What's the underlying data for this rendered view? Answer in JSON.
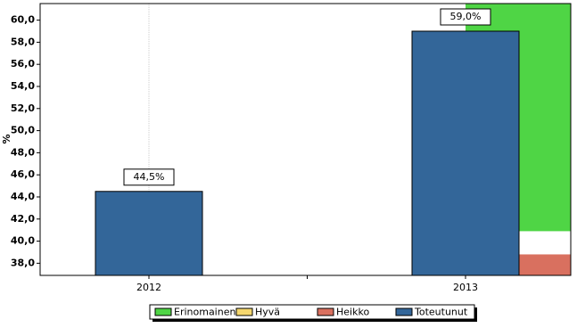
{
  "chart_data": {
    "type": "bar",
    "ylabel": "%",
    "categories": [
      "2012",
      "2013"
    ],
    "ylim": [
      36.9,
      61.5
    ],
    "yticks": [
      {
        "value": 38,
        "label": "38,0"
      },
      {
        "value": 40,
        "label": "40,0"
      },
      {
        "value": 42,
        "label": "42,0"
      },
      {
        "value": 44,
        "label": "44,0"
      },
      {
        "value": 46,
        "label": "46,0"
      },
      {
        "value": 48,
        "label": "48,0"
      },
      {
        "value": 50,
        "label": "50,0"
      },
      {
        "value": 52,
        "label": "52,0"
      },
      {
        "value": 54,
        "label": "54,0"
      },
      {
        "value": 56,
        "label": "56,0"
      },
      {
        "value": 58,
        "label": "58,0"
      },
      {
        "value": 60,
        "label": "60,0"
      }
    ],
    "series": [
      {
        "name": "Erinomainen",
        "color": "#4fd545",
        "values": [
          null,
          40.9
        ]
      },
      {
        "name": "Hyvä",
        "color": "#f5d76e",
        "values": [
          null,
          null
        ]
      },
      {
        "name": "Heikko",
        "color": "#d9705f",
        "values": [
          null,
          38.8
        ]
      },
      {
        "name": "Toteutunut",
        "color": "#336699",
        "values": [
          44.5,
          59.0
        ],
        "value_labels": [
          "44,5%",
          "59,0%"
        ]
      }
    ]
  }
}
